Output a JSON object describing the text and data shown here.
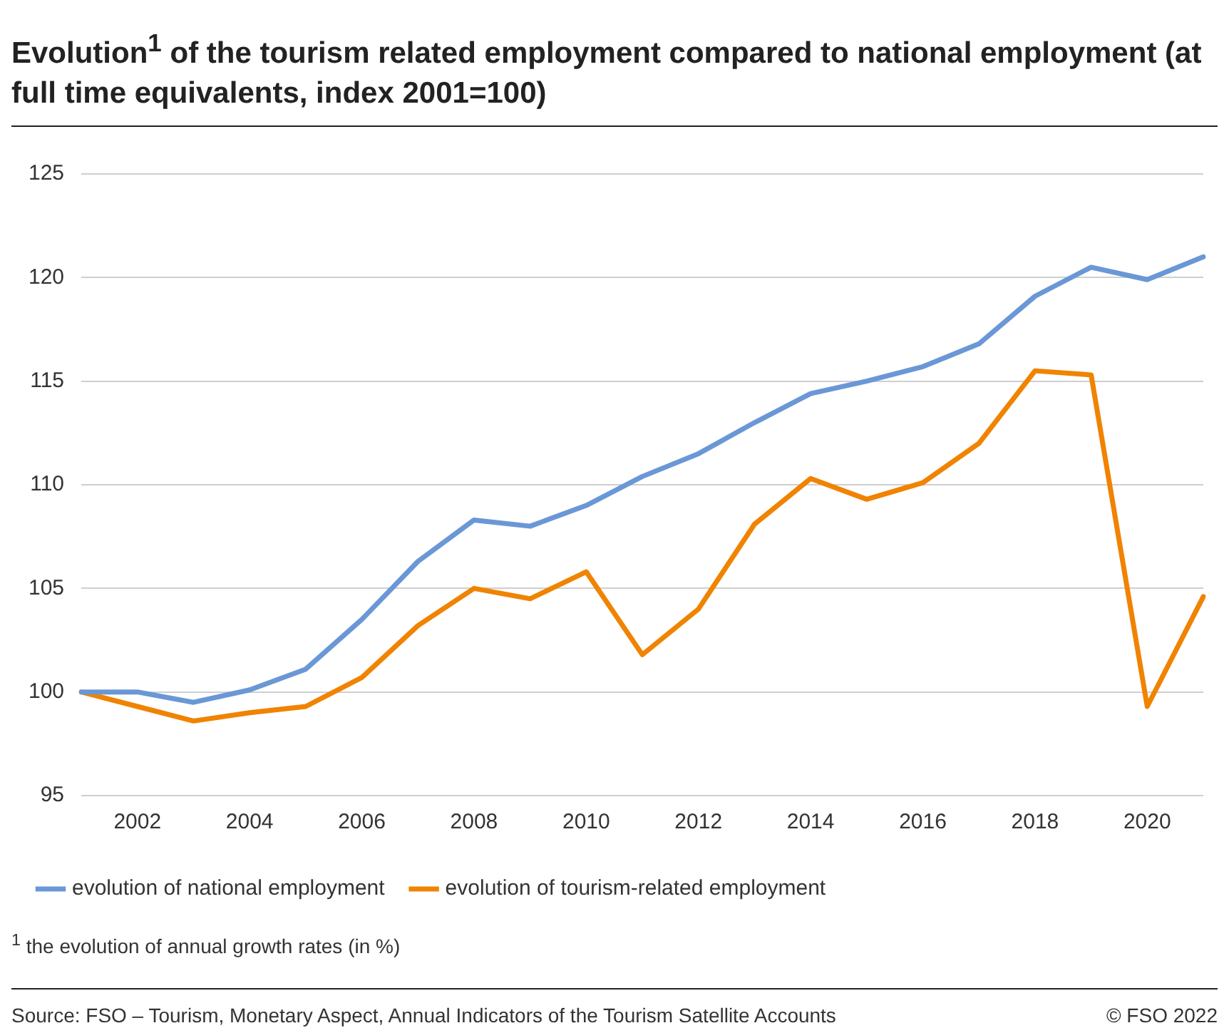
{
  "chart_data": {
    "type": "line",
    "title": "Evolution$^{1}$ of the tourism related employment compared to national employment (at full time equivalents, index 2001=100)",
    "categories": [
      null,
      "2002",
      null,
      "2004",
      null,
      "2006",
      null,
      "2008",
      null,
      "2010",
      null,
      "2012",
      null,
      "2014",
      null,
      "2016",
      null,
      "2018",
      null,
      "2020",
      null
    ],
    "series": [
      {
        "name": "evolution of national employment",
        "color": "#6a97d6",
        "values": [
          100,
          100,
          99.5,
          100.1,
          101.1,
          103.5,
          106.3,
          108.3,
          108.0,
          109.0,
          110.4,
          111.5,
          113.0,
          114.4,
          115.0,
          115.7,
          116.8,
          119.1,
          120.5,
          119.9,
          121.0
        ]
      },
      {
        "name": "evolution of tourism-related employment",
        "color": "#f08300",
        "values": [
          100,
          99.3,
          98.6,
          99.0,
          99.3,
          100.7,
          103.2,
          105.0,
          104.5,
          105.8,
          101.8,
          104.0,
          108.1,
          110.3,
          109.3,
          110.1,
          112.0,
          115.5,
          115.3,
          99.3,
          104.6
        ]
      }
    ],
    "ylim": [
      95,
      125
    ],
    "yticks": [
      95,
      100,
      105,
      110,
      115,
      120,
      125
    ],
    "grid": "y",
    "legend": "bottom",
    "marker": "none",
    "line_style": "solid",
    "annotations": [
      "$^{1}$ the evolution of annual growth rates (in %)",
      "Source: FSO – Tourism, Monetary Aspect, Annual Indicators of the Tourism Satellite Accounts",
      "© FSO 2022"
    ]
  }
}
